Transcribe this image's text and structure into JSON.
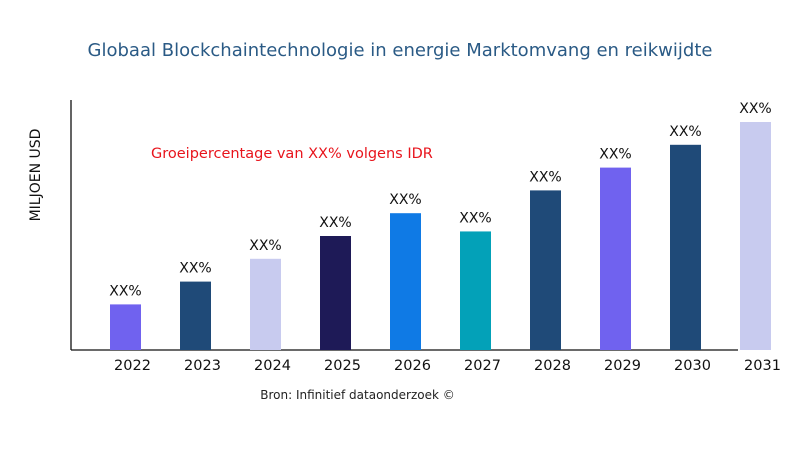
{
  "chart_data": {
    "type": "bar",
    "title": "Globaal Blockchaintechnologie in energie Marktomvang en reikwijdte",
    "ylabel": "MILJOEN USD",
    "xlabel": "",
    "annotation": "Groeipercentage van XX% volgens IDR",
    "source": "Bron: Infinitief dataonderzoek ©",
    "categories": [
      "2022",
      "2023",
      "2024",
      "2025",
      "2026",
      "2027",
      "2028",
      "2029",
      "2030",
      "2031"
    ],
    "values": [
      20,
      30,
      40,
      50,
      60,
      52,
      70,
      80,
      90,
      100
    ],
    "data_labels": [
      "XX%",
      "XX%",
      "XX%",
      "XX%",
      "XX%",
      "XX%",
      "XX%",
      "XX%",
      "XX%",
      "XX%"
    ],
    "colors": [
      "#7062ef",
      "#1f4a78",
      "#c8cbef",
      "#1e1a57",
      "#0f7ae5",
      "#03a1b8",
      "#1f4a78",
      "#7062ef",
      "#1f4a78",
      "#c8cbef"
    ],
    "ylim": [
      0,
      100
    ],
    "grid": false,
    "legend": "none"
  }
}
